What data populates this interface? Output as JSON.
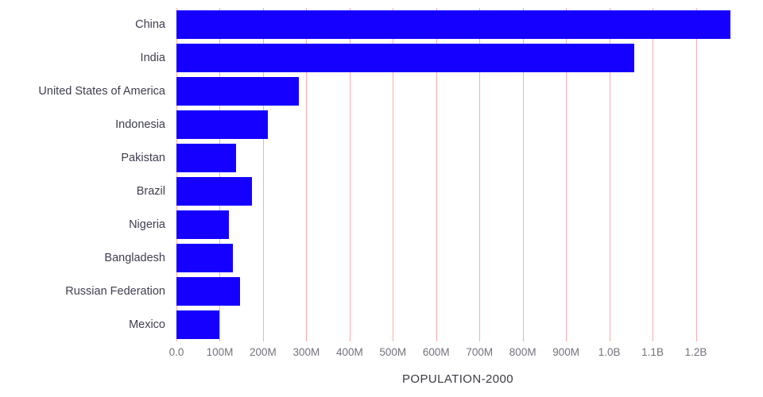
{
  "chart_data": {
    "type": "bar",
    "orientation": "horizontal",
    "title": "POPULATION-2000",
    "xlabel": "POPULATION-2000",
    "ylabel": "",
    "categories": [
      "China",
      "India",
      "United States of America",
      "Indonesia",
      "Pakistan",
      "Brazil",
      "Nigeria",
      "Bangladesh",
      "Russian Federation",
      "Mexico"
    ],
    "values_millions": [
      1280,
      1057,
      282,
      211,
      138,
      175,
      122,
      130,
      146,
      99
    ],
    "xlim_millions": [
      0,
      1300
    ],
    "xticks": [
      {
        "value": 0,
        "label": "0.0"
      },
      {
        "value": 100,
        "label": "100M"
      },
      {
        "value": 200,
        "label": "200M"
      },
      {
        "value": 300,
        "label": "300M"
      },
      {
        "value": 400,
        "label": "400M"
      },
      {
        "value": 500,
        "label": "500M"
      },
      {
        "value": 600,
        "label": "600M"
      },
      {
        "value": 700,
        "label": "700M"
      },
      {
        "value": 800,
        "label": "800M"
      },
      {
        "value": 900,
        "label": "900M"
      },
      {
        "value": 1000,
        "label": "1.0B"
      },
      {
        "value": 1100,
        "label": "1.1B"
      },
      {
        "value": 1200,
        "label": "1.2B"
      }
    ],
    "grid": true,
    "legend": false,
    "colors": {
      "bar": "#1500FF",
      "grid": "#FFABAB",
      "category_text": "#3E3E50",
      "tick_text": "#72727E",
      "axis_label_text": "#3A3A45",
      "background": "#FFFFFF"
    }
  }
}
